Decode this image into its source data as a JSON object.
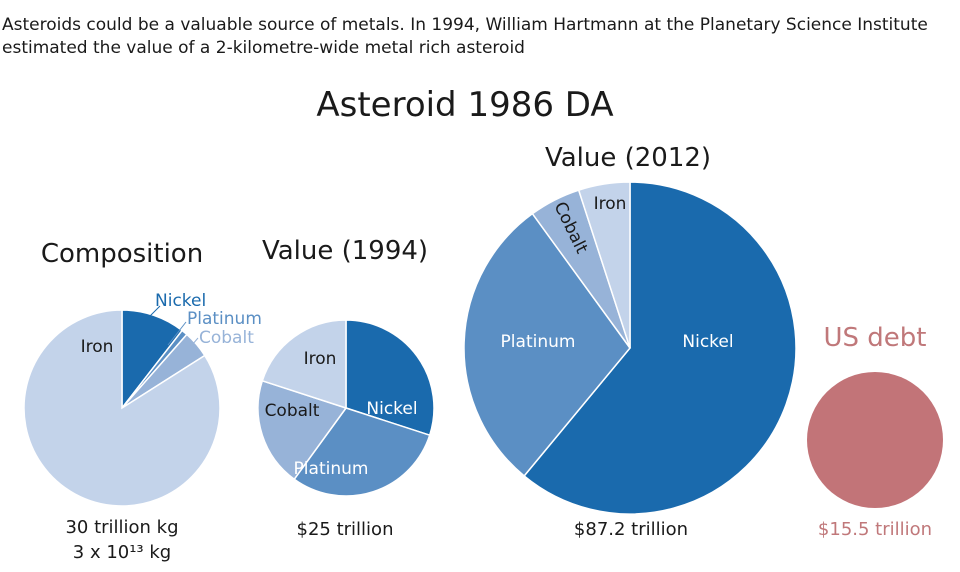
{
  "intro": {
    "line1": "Asteroids could be a valuable source of metals. In 1994, William Hartmann at the Planetary Science Institute",
    "line2": "estimated the value of a 2-kilometre-wide metal rich asteroid"
  },
  "title": "Asteroid 1986 DA",
  "colors": {
    "nickel": "#1a6aad",
    "platinum": "#5b8fc4",
    "cobalt": "#97b3d8",
    "iron": "#c3d3ea",
    "usdebt": "#c27478"
  },
  "chart_data": [
    {
      "type": "pie",
      "title": "Composition",
      "slices": [
        {
          "label": "Nickel",
          "value": 10.5,
          "color": "#1a6aad"
        },
        {
          "label": "Platinum",
          "value": 1,
          "color": "#5b8fc4"
        },
        {
          "label": "Cobalt",
          "value": 4.5,
          "color": "#97b3d8"
        },
        {
          "label": "Iron",
          "value": 84,
          "color": "#c3d3ea"
        }
      ],
      "total_label": "30 trillion kg",
      "total_label_2": "3 x 10¹³ kg"
    },
    {
      "type": "pie",
      "title": "Value (1994)",
      "slices": [
        {
          "label": "Nickel",
          "value": 30,
          "color": "#1a6aad"
        },
        {
          "label": "Platinum",
          "value": 30,
          "color": "#5b8fc4"
        },
        {
          "label": "Cobalt",
          "value": 20,
          "color": "#97b3d8"
        },
        {
          "label": "Iron",
          "value": 20,
          "color": "#c3d3ea"
        }
      ],
      "total": 25,
      "total_label": "$25 trillion"
    },
    {
      "type": "pie",
      "title": "Value (2012)",
      "slices": [
        {
          "label": "Nickel",
          "value": 61,
          "color": "#1a6aad"
        },
        {
          "label": "Platinum",
          "value": 29,
          "color": "#5b8fc4"
        },
        {
          "label": "Cobalt",
          "value": 5,
          "color": "#97b3d8"
        },
        {
          "label": "Iron",
          "value": 5,
          "color": "#c3d3ea"
        }
      ],
      "total": 87.2,
      "total_label": "$87.2 trillion"
    },
    {
      "type": "pie",
      "title": "US debt",
      "slices": [
        {
          "label": "US debt",
          "value": 100,
          "color": "#c27478"
        }
      ],
      "total": 15.5,
      "total_label": "$15.5 trillion"
    }
  ]
}
